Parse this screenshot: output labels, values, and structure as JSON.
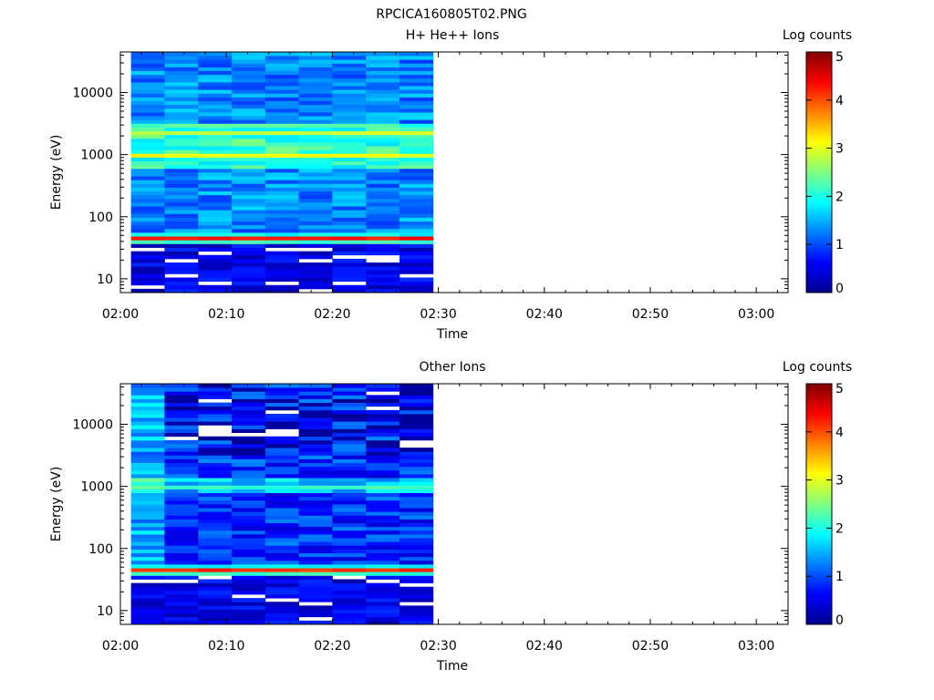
{
  "figure": {
    "title": "RPCICA160805T02.PNG"
  },
  "colors": {
    "background": "#ffffff",
    "axis": "#000000",
    "colormap": [
      "#00008f",
      "#0000ff",
      "#0080ff",
      "#00ffff",
      "#80ff80",
      "#ffff00",
      "#ff8000",
      "#ff0000",
      "#800000"
    ]
  },
  "chart_data": [
    {
      "type": "heatmap",
      "title": "H+ He++ Ions",
      "xlabel": "Time",
      "ylabel": "Energy (eV)",
      "x_ticks": [
        "02:00",
        "02:10",
        "02:20",
        "02:30",
        "02:40",
        "02:50",
        "03:00"
      ],
      "x_range_minutes": [
        0,
        63
      ],
      "y_ticks": [
        "10",
        "100",
        "1000",
        "10000"
      ],
      "y_scale": "log",
      "ylim": [
        6,
        45000
      ],
      "colorbar": {
        "label": "Log counts",
        "ticks": [
          "0",
          "1",
          "2",
          "3",
          "4",
          "5"
        ],
        "range": [
          0,
          5
        ]
      },
      "data_extent_minutes": [
        1,
        29.5
      ],
      "time_bins": 9,
      "features": [
        {
          "energy_eV": 45,
          "log_counts": 4.3
        },
        {
          "energy_eV": 1000,
          "log_counts": 3.2
        },
        {
          "energy_eV": 2200,
          "log_counts": 2.9
        }
      ]
    },
    {
      "type": "heatmap",
      "title": "Other Ions",
      "xlabel": "Time",
      "ylabel": "Energy (eV)",
      "x_ticks": [
        "02:00",
        "02:10",
        "02:20",
        "02:30",
        "02:40",
        "02:50",
        "03:00"
      ],
      "x_range_minutes": [
        0,
        63
      ],
      "y_ticks": [
        "10",
        "100",
        "1000",
        "10000"
      ],
      "y_scale": "log",
      "ylim": [
        6,
        45000
      ],
      "colorbar": {
        "label": "Log counts",
        "ticks": [
          "0",
          "1",
          "2",
          "3",
          "4",
          "5"
        ],
        "range": [
          0,
          5
        ]
      },
      "data_extent_minutes": [
        1,
        29.5
      ],
      "time_bins": 9,
      "features": [
        {
          "energy_eV": 45,
          "log_counts": 4.2
        },
        {
          "energy_eV": 1000,
          "log_counts": 2.2
        }
      ]
    }
  ]
}
